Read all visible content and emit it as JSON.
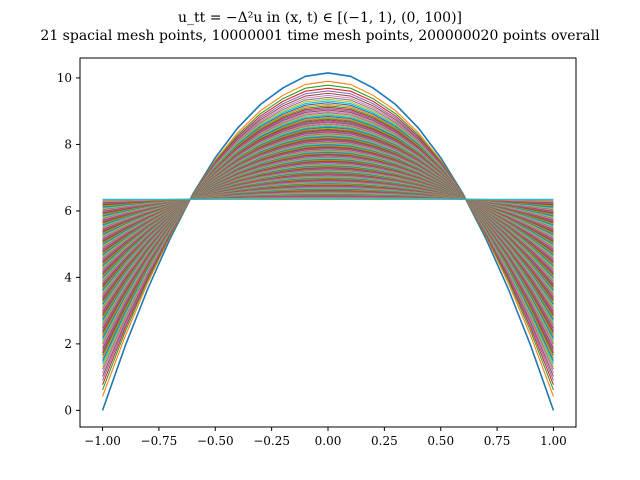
{
  "chart_data": {
    "type": "line",
    "title": "u_tt = −Δ²u in (x, t) ∈ [(−1, 1), (0, 100)]",
    "subtitle": "21 spacial mesh points, 10000001 time mesh points, 200000020 points overall",
    "xlabel": "",
    "ylabel": "",
    "xlim": [
      -1.1,
      1.1
    ],
    "ylim": [
      -0.5,
      10.6
    ],
    "x_ticks": [
      "−1.00",
      "−0.75",
      "−0.50",
      "−0.25",
      "0.00",
      "0.25",
      "0.50",
      "0.75",
      "1.00"
    ],
    "x_tick_values": [
      -1.0,
      -0.75,
      -0.5,
      -0.25,
      0.0,
      0.25,
      0.5,
      0.75,
      1.0
    ],
    "y_ticks": [
      "0",
      "2",
      "4",
      "6",
      "8",
      "10"
    ],
    "y_tick_values": [
      0,
      2,
      4,
      6,
      8,
      10
    ],
    "grid": false,
    "legend": "none",
    "x": [
      -1.0,
      -0.9,
      -0.8,
      -0.7,
      -0.6,
      -0.5,
      -0.4,
      -0.3,
      -0.2,
      -0.1,
      0.0,
      0.1,
      0.2,
      0.3,
      0.4,
      0.5,
      0.6,
      0.7,
      0.8,
      0.9,
      1.0
    ],
    "series_description": "Family of solution curves u(x, t) for many time levels; early curves are parabola-like (peak ≈10.15 at x=0, ≈0 at x=±1), later curves flatten to ≈6.35 across the domain.",
    "initial_curve": [
      0.0,
      1.93,
      3.65,
      5.17,
      6.5,
      7.6,
      8.5,
      9.2,
      9.7,
      10.05,
      10.15,
      10.05,
      9.7,
      9.2,
      8.5,
      7.6,
      6.5,
      5.17,
      3.65,
      1.93,
      0.0
    ],
    "final_level": 6.35,
    "num_curves_drawn": 140,
    "colors": [
      "#1f77b4",
      "#ff7f0e",
      "#2ca02c",
      "#d62728",
      "#9467bd",
      "#8c564b",
      "#e377c2",
      "#7f7f7f",
      "#bcbd22",
      "#17becf"
    ]
  }
}
